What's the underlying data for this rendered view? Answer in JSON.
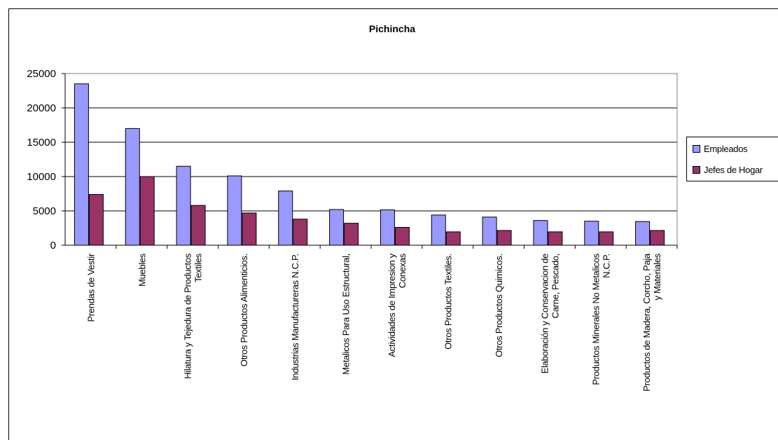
{
  "chart_data": {
    "type": "bar",
    "title": "Pichincha",
    "xlabel": "",
    "ylabel": "",
    "ylim": [
      0,
      25000
    ],
    "yticks": [
      "0",
      "5000",
      "10000",
      "15000",
      "20000",
      "25000"
    ],
    "grid": true,
    "legend_position": "right",
    "categories": [
      [
        "Prendas de Vestir"
      ],
      [
        "Muebles"
      ],
      [
        "Hilatura y Tejedura de Productos",
        "Textiles"
      ],
      [
        "Otros Productos Alimenticios."
      ],
      [
        "Industrias Manufactureras N.C.P."
      ],
      [
        "Metalicos Para Uso Estructural,"
      ],
      [
        "Actividades de Impresion y",
        "Conexas"
      ],
      [
        "Otros Productos Textiles."
      ],
      [
        "Otros Productos Quimicos."
      ],
      [
        "Elaboración y Conservacion de",
        "Carne,  Pescado,"
      ],
      [
        "Productos Minerales No Metalicos",
        "N.C.P."
      ],
      [
        "Productos de Madera, Corcho, Paja",
        "y Materiales"
      ]
    ],
    "series": [
      {
        "name": "Empleados",
        "color": "#9999FF",
        "values": [
          23500,
          17000,
          11500,
          10100,
          7900,
          5200,
          5150,
          4400,
          4100,
          3600,
          3500,
          3450
        ]
      },
      {
        "name": "Jefes de Hogar",
        "color": "#993366",
        "values": [
          7400,
          10000,
          5800,
          4700,
          3800,
          3200,
          2600,
          1950,
          2150,
          1950,
          1950,
          2150
        ]
      }
    ]
  }
}
